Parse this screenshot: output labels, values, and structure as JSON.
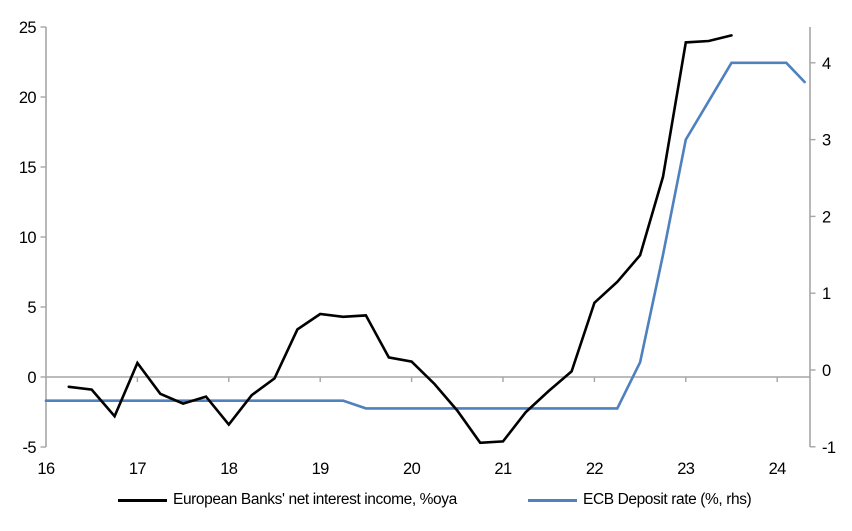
{
  "chart_data": {
    "type": "line",
    "title": "",
    "xlabel": "",
    "ylabel_left": "",
    "ylabel_right": "",
    "grid": "zero-line-only",
    "legend_position": "bottom",
    "x_axis": {
      "tick_values": [
        16,
        17,
        18,
        19,
        20,
        21,
        22,
        23,
        24
      ],
      "tick_labels": [
        "16",
        "17",
        "18",
        "19",
        "20",
        "21",
        "22",
        "23",
        "24"
      ],
      "range": [
        16,
        24.36
      ]
    },
    "y_axis_left": {
      "tick_values": [
        25,
        20,
        15,
        10,
        5,
        0,
        -5
      ],
      "tick_labels": [
        "25",
        "20",
        "15",
        "10",
        "5",
        "0",
        "-5"
      ],
      "range": [
        -5,
        25
      ]
    },
    "y_axis_right": {
      "tick_values": [
        4,
        3,
        2,
        1,
        0,
        -1
      ],
      "tick_labels": [
        "4",
        "3",
        "2",
        "1",
        "0",
        "-1"
      ],
      "range": [
        -1,
        4.47
      ]
    },
    "series": [
      {
        "name": "European Banks' net interest income, %oya",
        "axis": "left",
        "color": "#000000",
        "width": 2.6,
        "x": [
          16.25,
          16.5,
          16.75,
          17.0,
          17.25,
          17.5,
          17.75,
          18.0,
          18.25,
          18.5,
          18.75,
          19.0,
          19.25,
          19.5,
          19.75,
          20.0,
          20.25,
          20.5,
          20.75,
          21.0,
          21.25,
          21.5,
          21.75,
          22.0,
          22.25,
          22.5,
          22.75,
          23.0,
          23.25,
          23.5
        ],
        "values": [
          -0.7,
          -0.9,
          -2.8,
          1.0,
          -1.2,
          -1.9,
          -1.4,
          -3.4,
          -1.3,
          -0.1,
          3.4,
          4.5,
          4.3,
          4.4,
          1.4,
          1.1,
          -0.5,
          -2.4,
          -4.7,
          -4.6,
          -2.5,
          -1.0,
          0.4,
          5.3,
          6.8,
          8.7,
          14.3,
          23.9,
          24.0,
          24.4
        ]
      },
      {
        "name": "ECB Deposit rate (%, rhs)",
        "axis": "right",
        "color": "#4e81bd",
        "width": 2.6,
        "x": [
          16.0,
          19.25,
          19.5,
          22.25,
          22.5,
          22.75,
          23.0,
          23.25,
          23.5,
          24.1,
          24.3
        ],
        "values": [
          -0.4,
          -0.4,
          -0.5,
          -0.5,
          0.1,
          1.5,
          3.0,
          3.5,
          4.0,
          4.0,
          3.75
        ]
      }
    ],
    "colors": {
      "axis": "#a6a6a6",
      "zero_line": "#a6a6a6",
      "text": "#000000"
    }
  },
  "legend": {
    "nii_label": "European Banks' net interest income, %oya",
    "ecb_label": "ECB Deposit rate (%, rhs)"
  }
}
